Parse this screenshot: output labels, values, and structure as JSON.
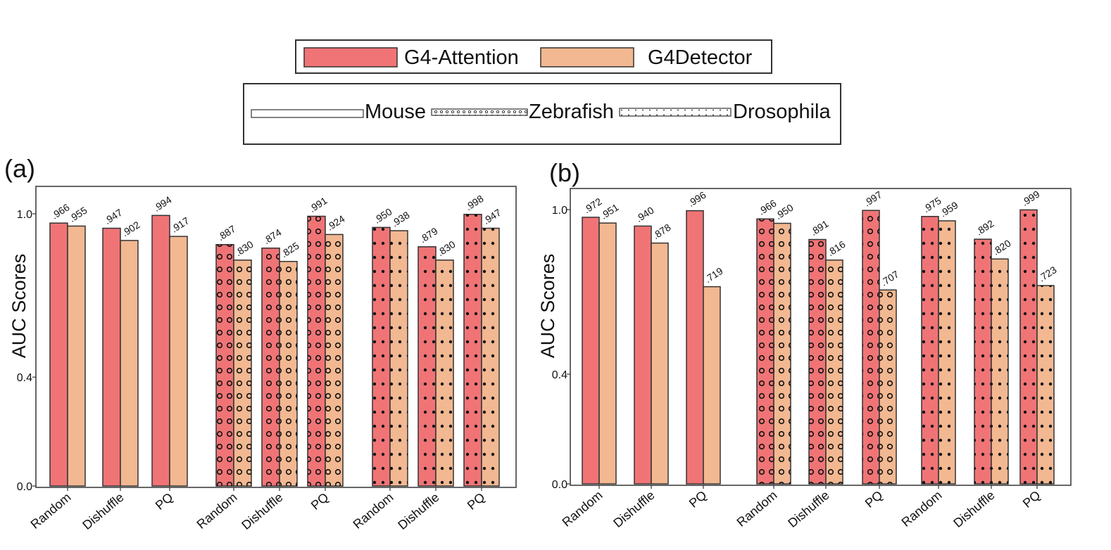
{
  "colors": {
    "g4attention": "#f07476",
    "g4detector": "#f2b891",
    "frame": "#333333"
  },
  "legend_methods": [
    {
      "label": "G4-Attention",
      "color": "#f07476"
    },
    {
      "label": "G4Detector",
      "color": "#f2b891"
    }
  ],
  "legend_species": [
    {
      "label": "Mouse",
      "pattern": "none"
    },
    {
      "label": "Zebrafish",
      "pattern": "small-circles"
    },
    {
      "label": "Drosophila",
      "pattern": "dots"
    }
  ],
  "chart_data": [
    {
      "type": "bar",
      "panel_label": "(a)",
      "ylabel": "AUC Scores",
      "ylim": [
        0,
        1.05
      ],
      "y_ticks": [
        0.0,
        0.4,
        1.0
      ],
      "y_tick_labels": [
        "0.0",
        "0.4",
        "1.0"
      ],
      "grid": false,
      "categories": [
        "Random",
        "Dishuffle",
        "PQ",
        "Random",
        "Dishuffle",
        "PQ",
        "Random",
        "Dishuffle",
        "PQ"
      ],
      "category_species": [
        "Mouse",
        "Mouse",
        "Mouse",
        "Zebrafish",
        "Zebrafish",
        "Zebrafish",
        "Drosophila",
        "Drosophila",
        "Drosophila"
      ],
      "series": [
        {
          "name": "G4-Attention",
          "values": [
            0.966,
            0.947,
            0.994,
            0.887,
            0.874,
            0.991,
            0.95,
            0.879,
            0.998
          ],
          "value_labels": [
            ".966",
            ".947",
            ".994",
            ".887",
            ".874",
            ".991",
            ".950",
            ".879",
            ".998"
          ]
        },
        {
          "name": "G4Detector",
          "values": [
            0.955,
            0.902,
            0.917,
            0.83,
            0.825,
            0.924,
            0.938,
            0.83,
            0.947
          ],
          "value_labels": [
            ".955",
            ".902",
            ".917",
            ".830",
            ".825",
            ".924",
            ".938",
            ".830",
            ".947"
          ]
        }
      ]
    },
    {
      "type": "bar",
      "panel_label": "(b)",
      "ylabel": "AUC Scores",
      "ylim": [
        0,
        1.05
      ],
      "y_ticks": [
        0.0,
        0.4,
        1.0
      ],
      "y_tick_labels": [
        "0.0",
        "0.4",
        "1.0"
      ],
      "grid": false,
      "categories": [
        "Random",
        "Dishuffle",
        "PQ",
        "Random",
        "Dishuffle",
        "PQ",
        "Random",
        "Dishuffle",
        "PQ"
      ],
      "category_species": [
        "Mouse",
        "Mouse",
        "Mouse",
        "Zebrafish",
        "Zebrafish",
        "Zebrafish",
        "Drosophila",
        "Drosophila",
        "Drosophila"
      ],
      "series": [
        {
          "name": "G4-Attention",
          "values": [
            0.972,
            0.94,
            0.996,
            0.966,
            0.891,
            0.997,
            0.975,
            0.892,
            0.999
          ],
          "value_labels": [
            ".972",
            ".940",
            ".996",
            ".966",
            ".891",
            ".997",
            ".975",
            ".892",
            ".999"
          ]
        },
        {
          "name": "G4Detector",
          "values": [
            0.951,
            0.878,
            0.719,
            0.95,
            0.816,
            0.707,
            0.959,
            0.82,
            0.723
          ],
          "value_labels": [
            ".951",
            ".878",
            ".719",
            ".950",
            ".816",
            ".707",
            ".959",
            ".820",
            ".723"
          ]
        }
      ]
    }
  ]
}
